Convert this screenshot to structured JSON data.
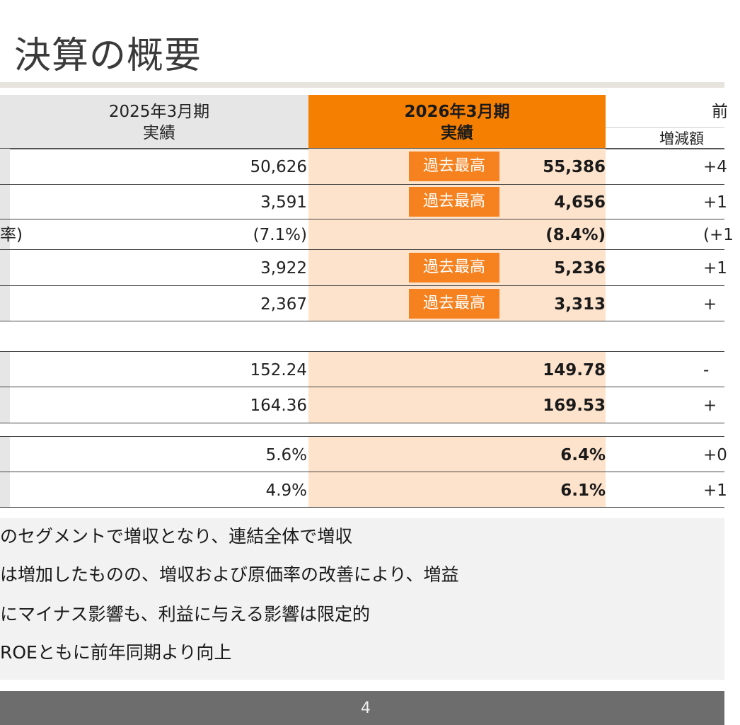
{
  "page_title": "決算の概要",
  "header": {
    "prev_line1": "2025年3月期",
    "prev_line2": "実績",
    "cur_line1": "2026年3月期",
    "cur_line2": "実績",
    "right_top": "前",
    "right_sub": "増減額"
  },
  "badge_label": "過去最高",
  "rows": [
    {
      "left": "",
      "prev": "50,626",
      "cur": "55,386",
      "change": "+4",
      "record": true
    },
    {
      "left": "",
      "prev": "3,591",
      "cur": "4,656",
      "change": "+1",
      "record": true
    },
    {
      "left": "率)",
      "prev": "(7.1%)",
      "cur": "(8.4%)",
      "change": "(+1",
      "record": false
    },
    {
      "left": "",
      "prev": "3,922",
      "cur": "5,236",
      "change": "+1",
      "record": true
    },
    {
      "left": "",
      "prev": "2,367",
      "cur": "3,313",
      "change": "+",
      "record": true
    },
    {
      "left": "",
      "prev": "152.24",
      "cur": "149.78",
      "change": "-",
      "record": false
    },
    {
      "left": "",
      "prev": "164.36",
      "cur": "169.53",
      "change": "+",
      "record": false
    },
    {
      "left": "",
      "prev": "5.6%",
      "cur": "6.4%",
      "change": "+0",
      "record": false
    },
    {
      "left": "",
      "prev": "4.9%",
      "cur": "6.1%",
      "change": "+1",
      "record": false
    }
  ],
  "notes": [
    "のセグメントで増収となり、連結全体で増収",
    "は増加したものの、増収および原価率の改善により、増益",
    "にマイナス影響も、利益に与える影響は限定的",
    "ROEともに前年同期より向上"
  ],
  "page_number": "4",
  "colors": {
    "accent_orange": "#f57f00",
    "badge_orange": "#f5821f",
    "highlight_peach": "#fde3cc",
    "header_gray": "#e6e6e6",
    "footer_gray": "#6d6d6d"
  }
}
